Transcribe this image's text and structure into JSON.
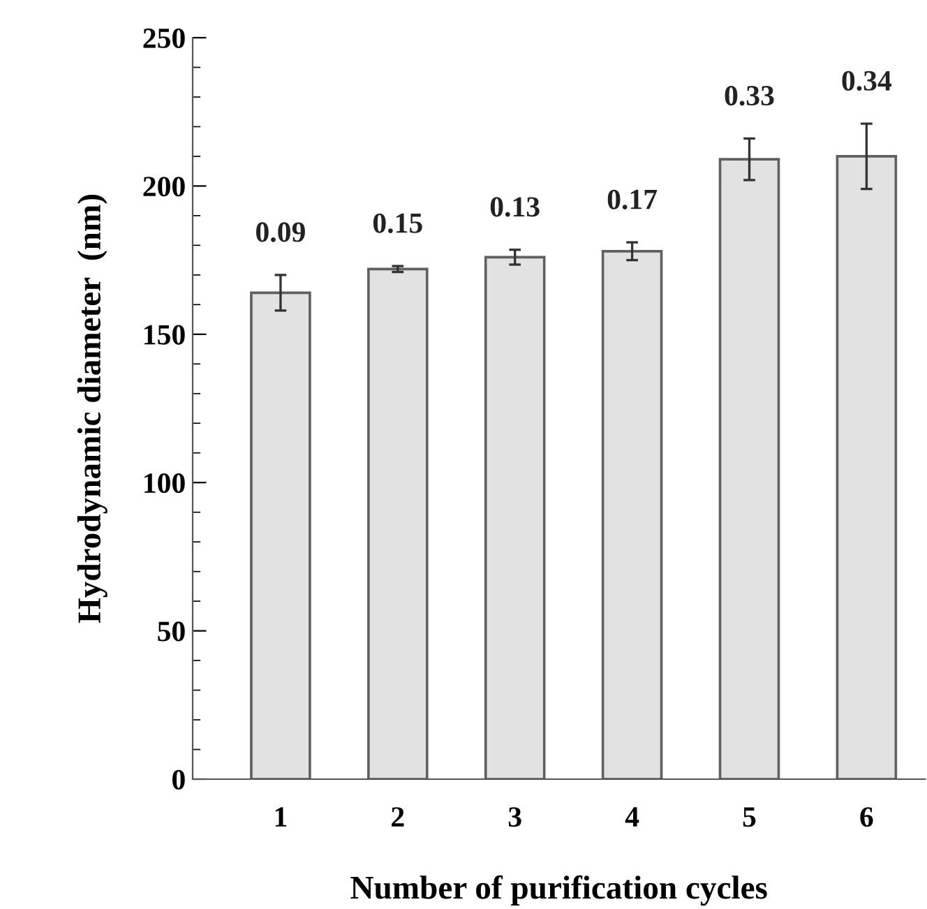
{
  "chart_data": {
    "type": "bar",
    "xlabel": "Number of purification cycles",
    "ylabel": "Hydrodynamic diameter  (nm)",
    "categories": [
      "1",
      "2",
      "3",
      "4",
      "5",
      "6"
    ],
    "values": [
      164,
      172,
      176,
      178,
      209,
      210
    ],
    "errors": [
      6,
      1,
      2.5,
      3,
      7,
      11
    ],
    "annotations": [
      {
        "text": "0.09",
        "x": "1",
        "y": 164
      },
      {
        "text": "0.15",
        "x": "2",
        "y": 172
      },
      {
        "text": "0.13",
        "x": "3",
        "y": 176
      },
      {
        "text": "0.17",
        "x": "4",
        "y": 178
      },
      {
        "text": "0.33",
        "x": "5",
        "y": 209
      },
      {
        "text": "0.34",
        "x": "6",
        "y": 210
      }
    ],
    "color": "#e2e2e2",
    "ylim": [
      0,
      250
    ],
    "yticks": [
      0,
      50,
      100,
      150,
      200,
      250
    ],
    "grid": false
  }
}
